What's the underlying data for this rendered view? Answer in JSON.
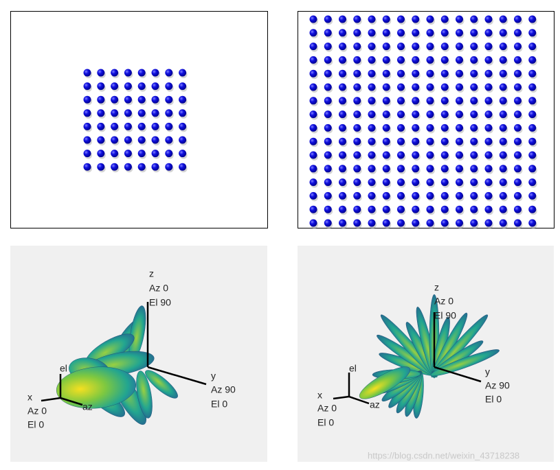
{
  "plots": [
    {
      "z": [
        "z",
        "Az 0",
        "El 90"
      ],
      "y": [
        "y",
        "Az 90",
        "El 0"
      ],
      "x": [
        "x",
        "Az 0",
        "El 0"
      ],
      "el": "el",
      "az": "az"
    },
    {
      "z": [
        "z",
        "Az 0",
        "El 90"
      ],
      "y": [
        "y",
        "Az 90",
        "El 0"
      ],
      "x": [
        "x",
        "Az 0",
        "El 0"
      ],
      "el": "el",
      "az": "az"
    }
  ],
  "watermark": "https://blog.csdn.net/weixin_43718238"
}
